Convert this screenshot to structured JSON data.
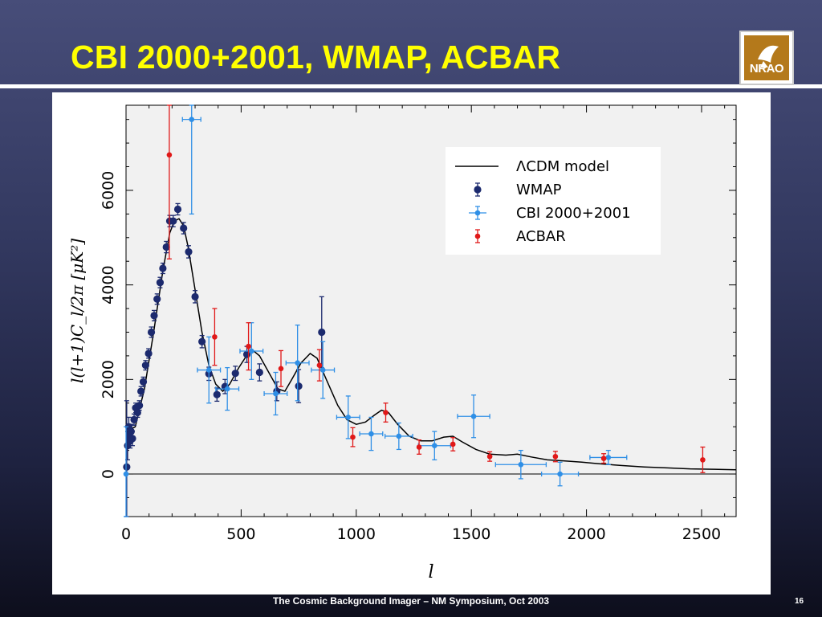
{
  "slide": {
    "title": "CBI 2000+2001, WMAP, ACBAR",
    "footer": "The Cosmic Background Imager – NM Symposium, Oct 2003",
    "page_number": "16",
    "logo_text": "NRAO"
  },
  "colors": {
    "title": "#ffff00",
    "wmap": "#1c2a6e",
    "cbi": "#2f8fe6",
    "acbar": "#e01818",
    "model": "#000000",
    "plot_background": "#f1f1f1",
    "logo": "#b4791b"
  },
  "chart_data": {
    "type": "scatter",
    "xlabel": "l",
    "ylabel": "l(l+1)C_l/2π [μK²]",
    "xlim": [
      0,
      2650
    ],
    "ylim": [
      -900,
      7800
    ],
    "xticks": [
      "0",
      "500",
      "1000",
      "1500",
      "2000",
      "2500"
    ],
    "xtick_values": [
      0,
      500,
      1000,
      1500,
      2000,
      2500
    ],
    "yticks": [
      "0",
      "2000",
      "4000",
      "6000"
    ],
    "ytick_values": [
      0,
      2000,
      4000,
      6000
    ],
    "grid": false,
    "legend_position": "top-right",
    "series": [
      {
        "name": "ΛCDM model",
        "type": "line",
        "color": "#000000",
        "points": [
          [
            2,
            900
          ],
          [
            40,
            1000
          ],
          [
            80,
            1800
          ],
          [
            120,
            3000
          ],
          [
            160,
            4300
          ],
          [
            190,
            5100
          ],
          [
            210,
            5350
          ],
          [
            230,
            5400
          ],
          [
            250,
            5250
          ],
          [
            270,
            4800
          ],
          [
            300,
            3900
          ],
          [
            330,
            3000
          ],
          [
            360,
            2300
          ],
          [
            390,
            1900
          ],
          [
            420,
            1750
          ],
          [
            450,
            1900
          ],
          [
            490,
            2250
          ],
          [
            530,
            2550
          ],
          [
            555,
            2600
          ],
          [
            580,
            2500
          ],
          [
            620,
            2150
          ],
          [
            660,
            1800
          ],
          [
            690,
            1750
          ],
          [
            720,
            2000
          ],
          [
            760,
            2350
          ],
          [
            800,
            2550
          ],
          [
            830,
            2450
          ],
          [
            870,
            2000
          ],
          [
            920,
            1450
          ],
          [
            960,
            1150
          ],
          [
            1000,
            1050
          ],
          [
            1040,
            1100
          ],
          [
            1080,
            1250
          ],
          [
            1110,
            1350
          ],
          [
            1140,
            1300
          ],
          [
            1180,
            1050
          ],
          [
            1230,
            800
          ],
          [
            1280,
            700
          ],
          [
            1330,
            700
          ],
          [
            1380,
            780
          ],
          [
            1420,
            800
          ],
          [
            1460,
            680
          ],
          [
            1520,
            520
          ],
          [
            1580,
            420
          ],
          [
            1650,
            400
          ],
          [
            1700,
            420
          ],
          [
            1760,
            360
          ],
          [
            1830,
            300
          ],
          [
            1900,
            280
          ],
          [
            1980,
            250
          ],
          [
            2050,
            220
          ],
          [
            2150,
            180
          ],
          [
            2250,
            150
          ],
          [
            2350,
            130
          ],
          [
            2450,
            110
          ],
          [
            2550,
            100
          ],
          [
            2650,
            90
          ]
        ]
      },
      {
        "name": "WMAP",
        "type": "scatter",
        "color": "#1c2a6e",
        "points": [
          [
            3,
            150,
            1400
          ],
          [
            7,
            600,
            300
          ],
          [
            12,
            1000,
            200
          ],
          [
            15,
            800,
            200
          ],
          [
            18,
            700,
            150
          ],
          [
            22,
            900,
            150
          ],
          [
            28,
            750,
            150
          ],
          [
            35,
            1150,
            120
          ],
          [
            42,
            1400,
            100
          ],
          [
            50,
            1300,
            100
          ],
          [
            58,
            1450,
            100
          ],
          [
            65,
            1750,
            100
          ],
          [
            75,
            1950,
            100
          ],
          [
            85,
            2300,
            100
          ],
          [
            98,
            2550,
            100
          ],
          [
            110,
            3000,
            110
          ],
          [
            122,
            3350,
            110
          ],
          [
            135,
            3700,
            110
          ],
          [
            148,
            4050,
            110
          ],
          [
            160,
            4350,
            110
          ],
          [
            175,
            4800,
            120
          ],
          [
            190,
            5350,
            120
          ],
          [
            205,
            5350,
            120
          ],
          [
            225,
            5600,
            120
          ],
          [
            250,
            5200,
            120
          ],
          [
            272,
            4700,
            130
          ],
          [
            300,
            3750,
            130
          ],
          [
            330,
            2800,
            130
          ],
          [
            360,
            2120,
            140
          ],
          [
            395,
            1680,
            140
          ],
          [
            430,
            1850,
            150
          ],
          [
            475,
            2130,
            150
          ],
          [
            525,
            2530,
            170
          ],
          [
            580,
            2150,
            180
          ],
          [
            655,
            1750,
            200
          ],
          [
            750,
            1860,
            350
          ],
          [
            850,
            3000,
            750
          ]
        ]
      },
      {
        "name": "CBI 2000+2001",
        "type": "scatter",
        "color": "#2f8fe6",
        "points": [
          [
            0,
            0,
            1000,
            0
          ],
          [
            285,
            7500,
            2000,
            40
          ],
          [
            360,
            2200,
            700,
            50
          ],
          [
            440,
            1800,
            450,
            50
          ],
          [
            545,
            2600,
            600,
            50
          ],
          [
            650,
            1700,
            450,
            50
          ],
          [
            745,
            2350,
            800,
            50
          ],
          [
            855,
            2200,
            600,
            50
          ],
          [
            965,
            1200,
            450,
            50
          ],
          [
            1065,
            850,
            350,
            50
          ],
          [
            1185,
            800,
            280,
            60
          ],
          [
            1340,
            600,
            300,
            70
          ],
          [
            1510,
            1220,
            450,
            70
          ],
          [
            1715,
            200,
            300,
            110
          ],
          [
            1885,
            0,
            250,
            80
          ],
          [
            2095,
            350,
            150,
            80
          ]
        ]
      },
      {
        "name": "ACBAR",
        "type": "scatter",
        "color": "#e01818",
        "points": [
          [
            188,
            6750,
            2200
          ],
          [
            385,
            2900,
            600
          ],
          [
            532,
            2700,
            500
          ],
          [
            673,
            2230,
            380
          ],
          [
            840,
            2300,
            330
          ],
          [
            985,
            780,
            200
          ],
          [
            1128,
            1300,
            200
          ],
          [
            1273,
            570,
            150
          ],
          [
            1420,
            630,
            140
          ],
          [
            1580,
            370,
            100
          ],
          [
            1865,
            370,
            110
          ],
          [
            2075,
            330,
            100
          ],
          [
            2505,
            300,
            270
          ]
        ]
      }
    ]
  }
}
